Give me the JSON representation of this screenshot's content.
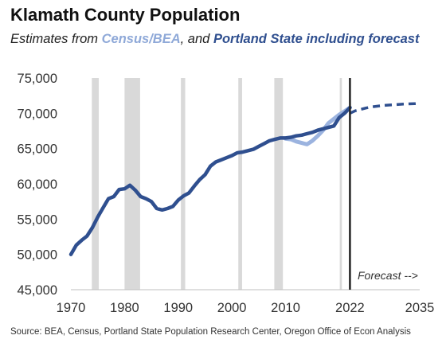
{
  "title": "Klamath County Population",
  "subtitle": {
    "prefix": "Estimates from ",
    "census": "Census/BEA",
    "middle": ", and ",
    "psu": "Portland State including forecast"
  },
  "source": "Source: BEA, Census, Portland State Population Research Center, Oregon Office of Econ Analysis",
  "colors": {
    "psu": "#2f4f8f",
    "census": "#9bb3df",
    "recession": "#d9d9d9",
    "forecast_divider": "#222222"
  },
  "chart_data": {
    "type": "line",
    "title": "Klamath County Population",
    "xlim": [
      1970,
      2035
    ],
    "ylim": [
      45000,
      75000
    ],
    "x_ticks": [
      "1970",
      "1980",
      "1990",
      "2000",
      "2010",
      "2022",
      "2035"
    ],
    "y_ticks": [
      "45,000",
      "50,000",
      "55,000",
      "60,000",
      "65,000",
      "70,000",
      "75,000"
    ],
    "x_tick_values": [
      1970,
      1980,
      1990,
      2000,
      2010,
      2022,
      2035
    ],
    "y_tick_values": [
      45000,
      50000,
      55000,
      60000,
      65000,
      70000,
      75000
    ],
    "recessions": [
      [
        1973.9,
        1975.2
      ],
      [
        1980.0,
        1982.9
      ],
      [
        1990.5,
        1991.3
      ],
      [
        2001.2,
        2001.9
      ],
      [
        2007.9,
        2009.5
      ],
      [
        2020.1,
        2020.5
      ]
    ],
    "forecast_start": 2022,
    "forecast_label": "Forecast -->",
    "series": [
      {
        "name": "Census/BEA",
        "style": "solid",
        "x": [
          2010,
          2011,
          2012,
          2013,
          2014,
          2015,
          2016,
          2017,
          2018,
          2019,
          2020,
          2021,
          2022
        ],
        "y": [
          66400,
          66300,
          66000,
          65800,
          65600,
          66100,
          66800,
          67600,
          68600,
          69200,
          69800,
          70300,
          70800
        ]
      },
      {
        "name": "Portland State",
        "style": "solid",
        "x": [
          1970,
          1971,
          1972,
          1973,
          1974,
          1975,
          1976,
          1977,
          1978,
          1979,
          1980,
          1981,
          1982,
          1983,
          1984,
          1985,
          1986,
          1987,
          1988,
          1989,
          1990,
          1991,
          1992,
          1993,
          1994,
          1995,
          1996,
          1997,
          1998,
          1999,
          2000,
          2001,
          2002,
          2003,
          2004,
          2005,
          2006,
          2007,
          2008,
          2009,
          2010,
          2011,
          2012,
          2013,
          2014,
          2015,
          2016,
          2017,
          2018,
          2019,
          2020,
          2021,
          2022
        ],
        "y": [
          50000,
          51300,
          52000,
          52600,
          53800,
          55300,
          56600,
          57900,
          58200,
          59200,
          59300,
          59800,
          59100,
          58200,
          57900,
          57500,
          56500,
          56300,
          56500,
          56800,
          57700,
          58300,
          58700,
          59700,
          60600,
          61300,
          62500,
          63100,
          63400,
          63700,
          64000,
          64400,
          64500,
          64700,
          64900,
          65300,
          65700,
          66100,
          66300,
          66500,
          66500,
          66600,
          66800,
          66900,
          67100,
          67300,
          67600,
          67800,
          68000,
          68200,
          69400,
          70000,
          70800
        ]
      },
      {
        "name": "Portland State forecast",
        "style": "dashed",
        "x": [
          2022,
          2023,
          2024,
          2025,
          2026,
          2027,
          2028,
          2029,
          2030,
          2031,
          2032,
          2033,
          2034,
          2035
        ],
        "y": [
          70000,
          70350,
          70550,
          70750,
          70900,
          71000,
          71100,
          71150,
          71200,
          71250,
          71300,
          71330,
          71360,
          71390
        ]
      }
    ]
  }
}
